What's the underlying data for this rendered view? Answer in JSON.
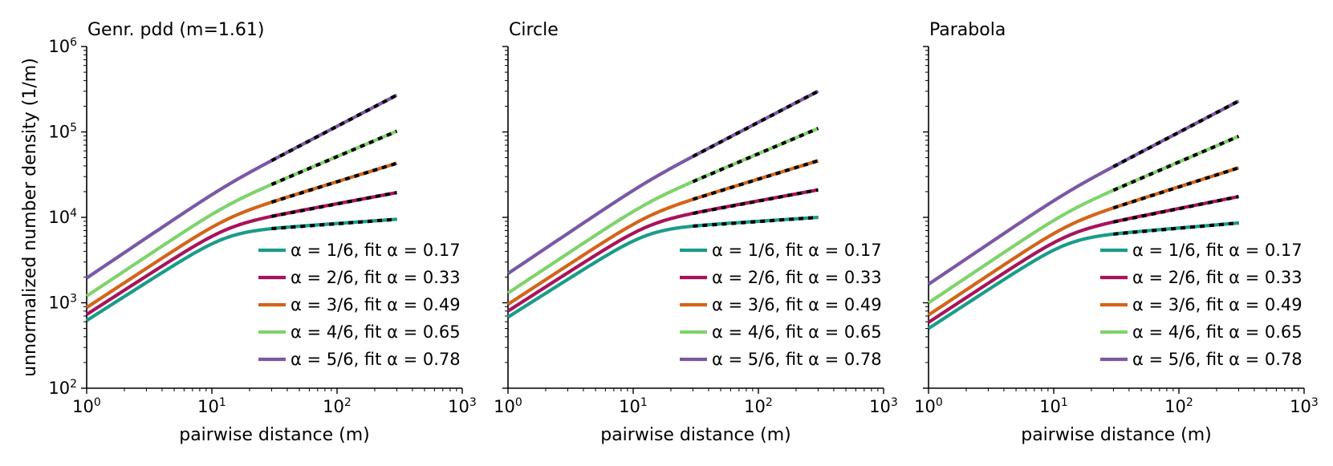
{
  "chart_data": [
    {
      "type": "line",
      "title": "Genr. pdd (m=1.61)",
      "xlabel": "pairwise distance (m)",
      "ylabel": "unnormalized number density (1/m)",
      "xscale": "log",
      "yscale": "log",
      "xlim": [
        1,
        1000
      ],
      "ylim": [
        100,
        1000000
      ],
      "x_ticks": [
        1,
        10,
        100,
        1000
      ],
      "y_ticks": [
        100,
        1000,
        10000,
        100000,
        1000000
      ],
      "legend_position": "lower-right",
      "fit_range": [
        30,
        300
      ],
      "series": [
        {
          "name": "α = 1/6, fit α = 0.17",
          "color": "#1a9c8a",
          "y_at_1": 620,
          "y_at_300": 9500,
          "fit_slope": 0.17
        },
        {
          "name": "α = 2/6, fit α = 0.33",
          "color": "#a8135c",
          "y_at_1": 730,
          "y_at_300": 19500,
          "fit_slope": 0.33
        },
        {
          "name": "α = 3/6, fit α = 0.49",
          "color": "#d3641a",
          "y_at_1": 880,
          "y_at_300": 43000,
          "fit_slope": 0.49
        },
        {
          "name": "α = 4/6, fit α = 0.65",
          "color": "#7fd36b",
          "y_at_1": 1200,
          "y_at_300": 102000,
          "fit_slope": 0.65
        },
        {
          "name": "α = 5/6, fit α = 0.78",
          "color": "#7b58a6",
          "y_at_1": 1950,
          "y_at_300": 270000,
          "fit_slope": 0.78
        }
      ]
    },
    {
      "type": "line",
      "title": "Circle",
      "xlabel": "pairwise distance (m)",
      "ylabel": "",
      "xscale": "log",
      "yscale": "log",
      "xlim": [
        1,
        1000
      ],
      "ylim": [
        100,
        1000000
      ],
      "x_ticks": [
        1,
        10,
        100,
        1000
      ],
      "y_ticks": [
        100,
        1000,
        10000,
        100000,
        1000000
      ],
      "legend_position": "lower-right",
      "fit_range": [
        30,
        300
      ],
      "series": [
        {
          "name": "α = 1/6, fit α = 0.17",
          "color": "#1a9c8a",
          "y_at_1": 680,
          "y_at_300": 10000,
          "fit_slope": 0.17
        },
        {
          "name": "α = 2/6, fit α = 0.33",
          "color": "#a8135c",
          "y_at_1": 800,
          "y_at_300": 21000,
          "fit_slope": 0.33
        },
        {
          "name": "α = 3/6, fit α = 0.49",
          "color": "#d3641a",
          "y_at_1": 960,
          "y_at_300": 46000,
          "fit_slope": 0.49
        },
        {
          "name": "α = 4/6, fit α = 0.65",
          "color": "#7fd36b",
          "y_at_1": 1300,
          "y_at_300": 110000,
          "fit_slope": 0.65
        },
        {
          "name": "α = 5/6, fit α = 0.78",
          "color": "#7b58a6",
          "y_at_1": 2200,
          "y_at_300": 300000,
          "fit_slope": 0.78
        }
      ]
    },
    {
      "type": "line",
      "title": "Parabola",
      "xlabel": "pairwise distance (m)",
      "ylabel": "",
      "xscale": "log",
      "yscale": "log",
      "xlim": [
        1,
        1000
      ],
      "ylim": [
        100,
        1000000
      ],
      "x_ticks": [
        1,
        10,
        100,
        1000
      ],
      "y_ticks": [
        100,
        1000,
        10000,
        100000,
        1000000
      ],
      "legend_position": "lower-right",
      "fit_range": [
        30,
        300
      ],
      "series": [
        {
          "name": "α = 1/6, fit α = 0.17",
          "color": "#1a9c8a",
          "y_at_1": 500,
          "y_at_300": 8600,
          "fit_slope": 0.17
        },
        {
          "name": "α = 2/6, fit α = 0.33",
          "color": "#a8135c",
          "y_at_1": 590,
          "y_at_300": 17500,
          "fit_slope": 0.33
        },
        {
          "name": "α = 3/6, fit α = 0.49",
          "color": "#d3641a",
          "y_at_1": 720,
          "y_at_300": 38000,
          "fit_slope": 0.49
        },
        {
          "name": "α = 4/6, fit α = 0.65",
          "color": "#7fd36b",
          "y_at_1": 1000,
          "y_at_300": 89000,
          "fit_slope": 0.65
        },
        {
          "name": "α = 5/6, fit α = 0.78",
          "color": "#7b58a6",
          "y_at_1": 1650,
          "y_at_300": 230000,
          "fit_slope": 0.78
        }
      ]
    }
  ]
}
